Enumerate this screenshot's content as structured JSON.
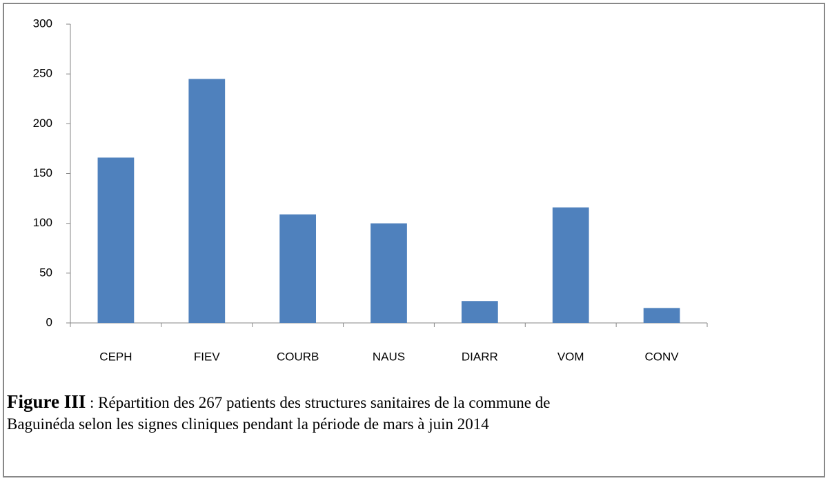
{
  "chart_data": {
    "type": "bar",
    "categories": [
      "CEPH",
      "FIEV",
      "COURB",
      "NAUS",
      "DIARR",
      "VOM",
      "CONV"
    ],
    "values": [
      166,
      245,
      109,
      100,
      22,
      116,
      15
    ],
    "color": "#4f81bd",
    "ylim": [
      0,
      300
    ],
    "yticks": [
      0,
      50,
      100,
      150,
      200,
      250,
      300
    ],
    "grid": false
  },
  "caption": {
    "label": "Figure III",
    "text_lines": [
      ": Répartition des 267 patients des structures sanitaires de la commune de",
      "Baguinéda selon les signes cliniques pendant la période de mars à juin 2014"
    ]
  }
}
